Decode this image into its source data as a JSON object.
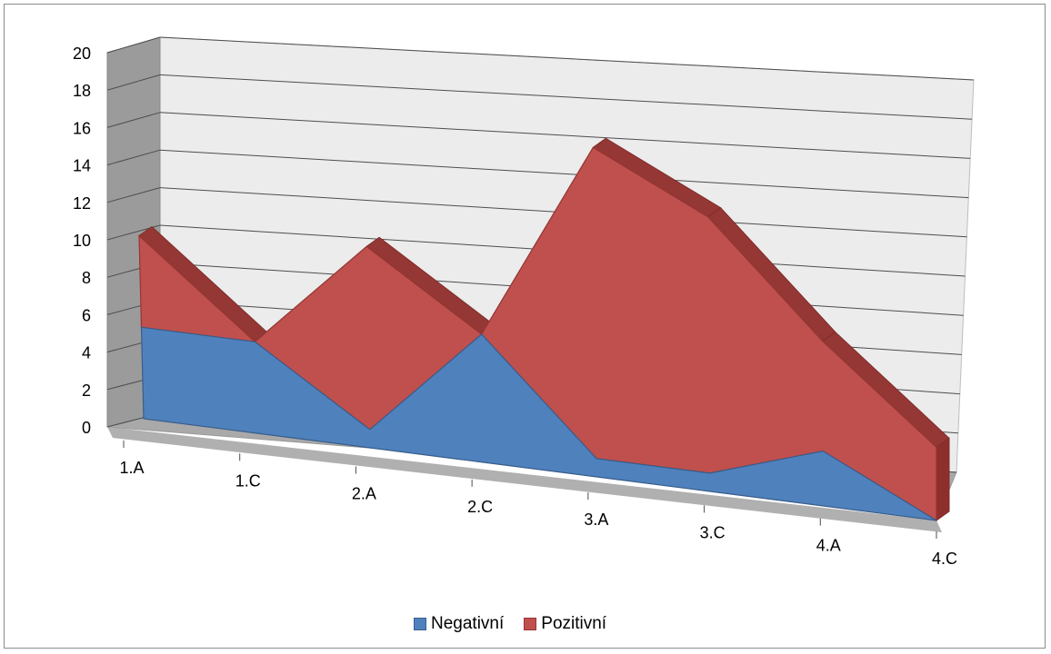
{
  "chart_data": {
    "type": "area",
    "style": "3d",
    "stacked": true,
    "categories": [
      "1.A",
      "1.C",
      "2.A",
      "2.C",
      "3.A",
      "3.C",
      "4.A",
      "4.C"
    ],
    "series": [
      {
        "name": "Negativní",
        "values": [
          5,
          5,
          1,
          7,
          1,
          1,
          3,
          0
        ],
        "color": "#4f81bd"
      },
      {
        "name": "Pozitivní",
        "values": [
          5,
          0,
          10,
          0,
          17,
          14,
          6,
          4
        ],
        "color": "#c0504d"
      }
    ],
    "ylim": [
      0,
      20
    ],
    "y_ticks": [
      "0",
      "2",
      "4",
      "6",
      "8",
      "10",
      "12",
      "14",
      "16",
      "18",
      "20"
    ],
    "grid": true,
    "legend_position": "bottom"
  }
}
